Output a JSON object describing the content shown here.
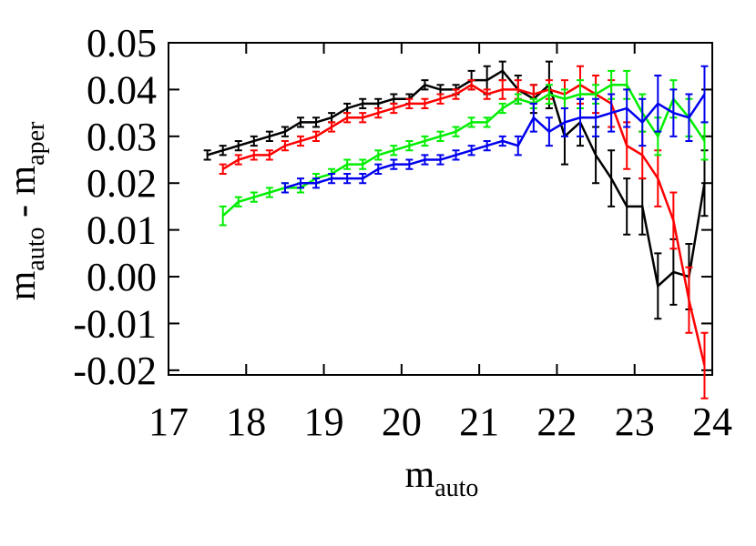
{
  "chart_data": {
    "type": "line",
    "xlabel": [
      "m",
      "auto"
    ],
    "ylabel": [
      "m",
      "auto",
      " - m",
      "aper"
    ],
    "x": [
      17.5,
      17.7,
      17.9,
      18.1,
      18.3,
      18.5,
      18.7,
      18.9,
      19.1,
      19.3,
      19.5,
      19.7,
      19.9,
      20.1,
      20.3,
      20.5,
      20.7,
      20.9,
      21.1,
      21.3,
      21.5,
      21.7,
      21.9,
      22.1,
      22.3,
      22.5,
      22.7,
      22.9,
      23.1,
      23.3,
      23.5,
      23.7,
      23.9
    ],
    "series": [
      {
        "color": "#000000",
        "values": [
          0.026,
          0.027,
          0.028,
          0.029,
          0.03,
          0.031,
          0.033,
          0.033,
          0.034,
          0.036,
          0.037,
          0.037,
          0.038,
          0.038,
          0.041,
          0.04,
          0.04,
          0.042,
          0.042,
          0.044,
          0.04,
          0.038,
          0.041,
          0.03,
          0.033,
          0.026,
          0.021,
          0.015,
          0.015,
          -0.002,
          0.001,
          0.0,
          0.02
        ],
        "errors": [
          0.001,
          0.001,
          0.001,
          0.001,
          0.001,
          0.001,
          0.001,
          0.001,
          0.001,
          0.001,
          0.001,
          0.001,
          0.001,
          0.001,
          0.001,
          0.001,
          0.001,
          0.002,
          0.003,
          0.002,
          0.003,
          0.003,
          0.005,
          0.006,
          0.005,
          0.006,
          0.006,
          0.006,
          0.006,
          0.007,
          0.007,
          0.007,
          0.007
        ]
      },
      {
        "color": "#ff0000",
        "values": [
          null,
          0.023,
          0.025,
          0.026,
          0.026,
          0.028,
          0.029,
          0.03,
          0.032,
          0.034,
          0.034,
          0.035,
          0.036,
          0.037,
          0.037,
          0.038,
          0.039,
          0.041,
          0.039,
          0.04,
          0.04,
          0.039,
          0.04,
          0.039,
          0.041,
          0.039,
          0.037,
          0.028,
          0.026,
          0.021,
          0.012,
          -0.005,
          -0.019
        ],
        "errors": [
          null,
          0.001,
          0.001,
          0.001,
          0.001,
          0.001,
          0.001,
          0.001,
          0.001,
          0.001,
          0.001,
          0.001,
          0.001,
          0.001,
          0.001,
          0.001,
          0.001,
          0.001,
          0.001,
          0.002,
          0.002,
          0.002,
          0.002,
          0.003,
          0.004,
          0.004,
          0.005,
          0.005,
          0.005,
          0.006,
          0.006,
          0.007,
          0.007
        ]
      },
      {
        "color": "#00ee00",
        "values": [
          null,
          0.013,
          0.016,
          0.017,
          0.018,
          0.019,
          0.019,
          0.021,
          0.022,
          0.024,
          0.024,
          0.026,
          0.027,
          0.028,
          0.029,
          0.03,
          0.031,
          0.033,
          0.033,
          0.036,
          0.038,
          0.037,
          0.039,
          0.038,
          0.039,
          0.039,
          0.041,
          0.041,
          0.035,
          0.03,
          0.038,
          0.034,
          0.029
        ],
        "errors": [
          null,
          0.002,
          0.001,
          0.001,
          0.001,
          0.001,
          0.001,
          0.001,
          0.001,
          0.001,
          0.001,
          0.001,
          0.001,
          0.001,
          0.001,
          0.001,
          0.001,
          0.001,
          0.001,
          0.001,
          0.001,
          0.001,
          0.002,
          0.002,
          0.003,
          0.002,
          0.003,
          0.003,
          0.004,
          0.004,
          0.004,
          0.004,
          0.004
        ]
      },
      {
        "color": "#0000ee",
        "values": [
          null,
          null,
          null,
          null,
          null,
          0.019,
          0.02,
          0.02,
          0.021,
          0.021,
          0.021,
          0.023,
          0.024,
          0.024,
          0.025,
          0.025,
          0.026,
          0.027,
          0.028,
          0.029,
          0.028,
          0.034,
          0.031,
          0.033,
          0.034,
          0.034,
          0.035,
          0.036,
          0.033,
          0.037,
          0.035,
          0.034,
          0.039
        ],
        "errors": [
          null,
          null,
          null,
          null,
          null,
          0.001,
          0.001,
          0.001,
          0.001,
          0.001,
          0.001,
          0.001,
          0.001,
          0.001,
          0.001,
          0.001,
          0.001,
          0.001,
          0.001,
          0.001,
          0.002,
          0.003,
          0.003,
          0.003,
          0.004,
          0.004,
          0.004,
          0.004,
          0.005,
          0.006,
          0.005,
          0.005,
          0.006
        ]
      }
    ],
    "xlim": [
      17,
      24
    ],
    "xticks": [
      17,
      18,
      19,
      20,
      21,
      22,
      23,
      24
    ],
    "ylim": [
      -0.021,
      0.05
    ],
    "yticks": [
      0.05,
      0.04,
      0.03,
      0.02,
      0.01,
      {
        "value": 0,
        "label": "0.00"
      },
      -0.01,
      -0.02
    ]
  }
}
